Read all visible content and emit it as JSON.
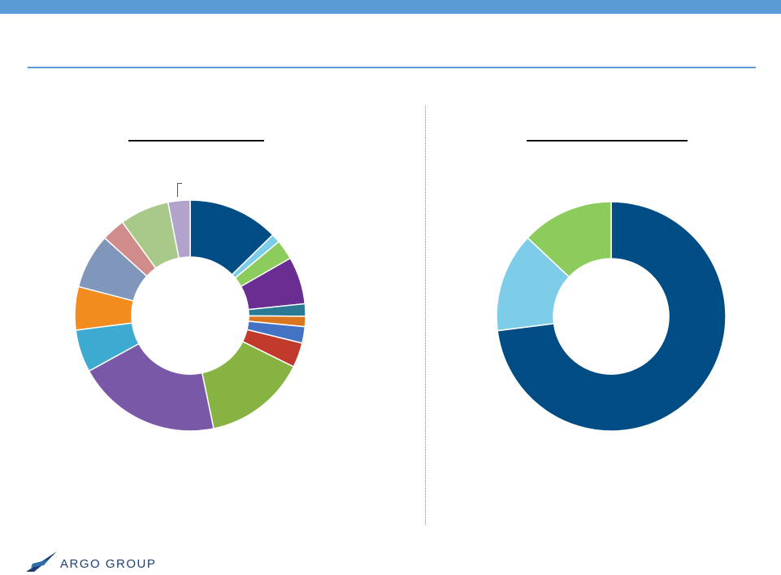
{
  "brand": {
    "name": "ARGO GROUP",
    "color": "#1d3f73"
  },
  "colors": {
    "accent": "#5a9bd6"
  },
  "chart_data": [
    {
      "type": "pie",
      "values": [
        13.2,
        1.3,
        2.9,
        6.9,
        1.8,
        1.5,
        2.4,
        3.6,
        15.0,
        21.1,
        6.2,
        6.3,
        8.0,
        3.4,
        7.2,
        3.2
      ],
      "colors": [
        "#004c84",
        "#7ecde8",
        "#8ccc5c",
        "#6a2d91",
        "#2b7a95",
        "#d9761f",
        "#4472c4",
        "#c0392b",
        "#86b342",
        "#7a58a8",
        "#3daad0",
        "#f28c1e",
        "#8096bb",
        "#d08b8b",
        "#a9c98a",
        "#b1a3c9"
      ]
    },
    {
      "type": "pie",
      "values": [
        73.0,
        14.0,
        13.0
      ],
      "colors": [
        "#004c84",
        "#7ecde8",
        "#8ccc5c"
      ]
    }
  ]
}
